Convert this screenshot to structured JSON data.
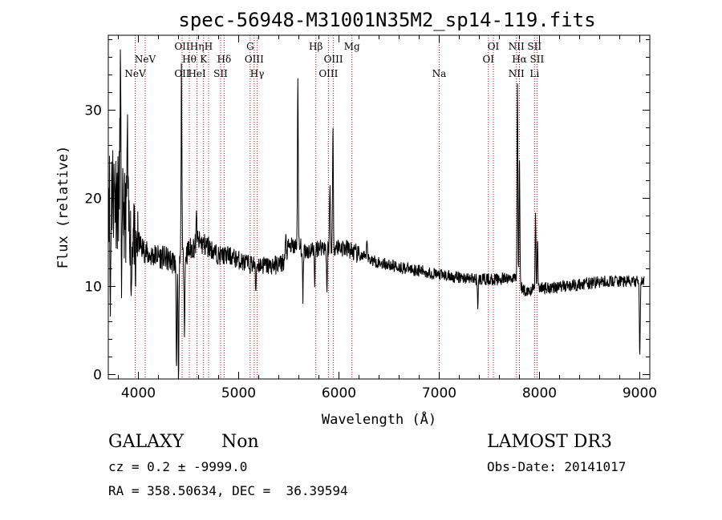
{
  "chart_data": {
    "type": "line",
    "title": "spec-56948-M31001N35M2_sp14-119.fits",
    "xlabel": "Wavelength (Å)",
    "ylabel": "Flux (relative)",
    "xlim": [
      3700,
      9100
    ],
    "ylim": [
      -0.5,
      38.5
    ],
    "xticks": [
      4000,
      5000,
      6000,
      7000,
      8000,
      9000
    ],
    "yticks": [
      0,
      10,
      20,
      30
    ],
    "grid": false,
    "line_color": "#000000",
    "marker_color": "#cc0000",
    "continuum_nodes": [
      [
        3700,
        22
      ],
      [
        3800,
        20
      ],
      [
        3900,
        17
      ],
      [
        4000,
        15
      ],
      [
        4100,
        13.5
      ],
      [
        4200,
        13.5
      ],
      [
        4300,
        13
      ],
      [
        4400,
        12.5
      ],
      [
        4500,
        14
      ],
      [
        4600,
        15
      ],
      [
        4700,
        14.5
      ],
      [
        4800,
        13.5
      ],
      [
        4900,
        13.5
      ],
      [
        5000,
        13
      ],
      [
        5100,
        12.5
      ],
      [
        5200,
        12.5
      ],
      [
        5300,
        12.3
      ],
      [
        5400,
        12.5
      ],
      [
        5450,
        12.8
      ],
      [
        5500,
        14.5
      ],
      [
        5600,
        14.5
      ],
      [
        5700,
        14
      ],
      [
        5800,
        14.5
      ],
      [
        5900,
        14.5
      ],
      [
        6000,
        14.5
      ],
      [
        6100,
        14.2
      ],
      [
        6200,
        13.5
      ],
      [
        6400,
        12.7
      ],
      [
        6600,
        12.2
      ],
      [
        6800,
        11.8
      ],
      [
        7000,
        11.3
      ],
      [
        7200,
        11
      ],
      [
        7400,
        10.8
      ],
      [
        7600,
        10.8
      ],
      [
        7750,
        11
      ],
      [
        7800,
        10.2
      ],
      [
        7850,
        9.5
      ],
      [
        8000,
        9.8
      ],
      [
        8200,
        10
      ],
      [
        8400,
        10.2
      ],
      [
        8600,
        10.5
      ],
      [
        8800,
        10.6
      ],
      [
        9000,
        10.5
      ],
      [
        9050,
        10.5
      ]
    ],
    "spectral_features": [
      {
        "wavelength": 3720,
        "depth": -15
      },
      {
        "wavelength": 3820,
        "depth": 15
      },
      {
        "wavelength": 3835,
        "depth": -9
      },
      {
        "wavelength": 3890,
        "depth": 10
      },
      {
        "wavelength": 3930,
        "depth": -7
      },
      {
        "wavelength": 3970,
        "depth": -6
      },
      {
        "wavelength": 4380,
        "depth": -12
      },
      {
        "wavelength": 4400,
        "depth": -15
      },
      {
        "wavelength": 4430,
        "depth": 22
      },
      {
        "wavelength": 4460,
        "depth": -8
      },
      {
        "wavelength": 4580,
        "depth": 3
      },
      {
        "wavelength": 5170,
        "depth": -3
      },
      {
        "wavelength": 5470,
        "depth": 2
      },
      {
        "wavelength": 5590,
        "depth": 19
      },
      {
        "wavelength": 5640,
        "depth": -6
      },
      {
        "wavelength": 5760,
        "depth": -4
      },
      {
        "wavelength": 5880,
        "depth": -5
      },
      {
        "wavelength": 5910,
        "depth": 7
      },
      {
        "wavelength": 5940,
        "depth": 13
      },
      {
        "wavelength": 6280,
        "depth": 2.5
      },
      {
        "wavelength": 7385,
        "depth": -3
      },
      {
        "wavelength": 7780,
        "depth": 23
      },
      {
        "wavelength": 7800,
        "depth": 15
      },
      {
        "wavelength": 7960,
        "depth": 8
      },
      {
        "wavelength": 7980,
        "depth": 6
      },
      {
        "wavelength": 9000,
        "depth": -9
      }
    ],
    "line_markers": [
      {
        "wavelength": 3968,
        "labels": [
          "NeV"
        ],
        "rows": [
          2
        ]
      },
      {
        "wavelength": 4068,
        "labels": [
          "NeV"
        ],
        "rows": [
          1
        ]
      },
      {
        "wavelength": 4436,
        "labels": [
          "OII",
          "OII"
        ],
        "rows": [
          0,
          2
        ]
      },
      {
        "wavelength": 4508,
        "labels": [
          "Hθ"
        ],
        "rows": [
          1
        ]
      },
      {
        "wavelength": 4585,
        "labels": [
          "Hη",
          "HeI"
        ],
        "rows": [
          0,
          2
        ]
      },
      {
        "wavelength": 4650,
        "labels": [
          "K"
        ],
        "rows": [
          1
        ]
      },
      {
        "wavelength": 4700,
        "labels": [
          "H"
        ],
        "rows": [
          0
        ]
      },
      {
        "wavelength": 4820,
        "labels": [
          "SII"
        ],
        "rows": [
          2
        ]
      },
      {
        "wavelength": 4855,
        "labels": [
          "Hδ"
        ],
        "rows": [
          1
        ]
      },
      {
        "wavelength": 5115,
        "labels": [
          "G"
        ],
        "rows": [
          0
        ]
      },
      {
        "wavelength": 5155,
        "labels": [
          "OIII"
        ],
        "rows": [
          1
        ]
      },
      {
        "wavelength": 5185,
        "labels": [
          "Hγ"
        ],
        "rows": [
          2
        ]
      },
      {
        "wavelength": 5770,
        "labels": [
          "Hβ"
        ],
        "rows": [
          0
        ]
      },
      {
        "wavelength": 5895,
        "labels": [
          "OIII"
        ],
        "rows": [
          2
        ]
      },
      {
        "wavelength": 5945,
        "labels": [
          "OIII"
        ],
        "rows": [
          1
        ]
      },
      {
        "wavelength": 6130,
        "labels": [
          "Mg"
        ],
        "rows": [
          0
        ]
      },
      {
        "wavelength": 7000,
        "labels": [
          "Na"
        ],
        "rows": [
          2
        ]
      },
      {
        "wavelength": 7490,
        "labels": [
          "OI"
        ],
        "rows": [
          1
        ]
      },
      {
        "wavelength": 7540,
        "labels": [
          "OI"
        ],
        "rows": [
          0
        ]
      },
      {
        "wavelength": 7770,
        "labels": [
          "NII",
          "NII"
        ],
        "rows": [
          0,
          2
        ]
      },
      {
        "wavelength": 7800,
        "labels": [
          "Hα"
        ],
        "rows": [
          1
        ]
      },
      {
        "wavelength": 7950,
        "labels": [
          "SII",
          "Li"
        ],
        "rows": [
          0,
          2
        ]
      },
      {
        "wavelength": 7975,
        "labels": [
          "SII"
        ],
        "rows": [
          1
        ]
      }
    ]
  },
  "footer": {
    "object_class": "GALAXY",
    "subclass": "Non",
    "survey": "LAMOST DR3",
    "redshift": "cz = 0.2 ± -9999.0",
    "obs_date": "Obs-Date: 20141017",
    "coordinates": "RA = 358.50634, DEC =  36.39594"
  }
}
